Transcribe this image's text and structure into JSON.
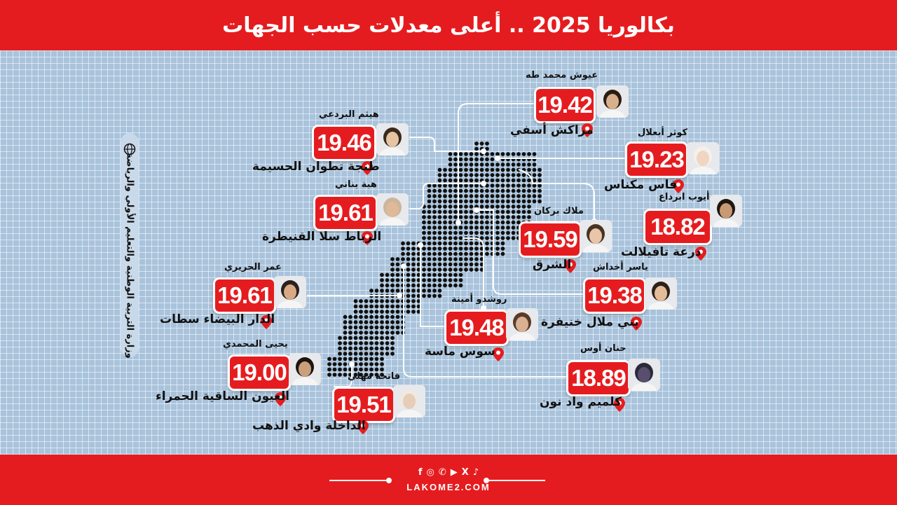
{
  "title": "بكالوريا 2025 .. أعلى معدلات حسب الجهات",
  "ministry": "وزارة التربية الوطنية والتعليم الأولي والرياضة",
  "footer": {
    "site": "LAKOME2.COM",
    "social": [
      {
        "icon": "facebook-icon",
        "glyph": "f"
      },
      {
        "icon": "instagram-icon",
        "glyph": "◎"
      },
      {
        "icon": "whatsapp-icon",
        "glyph": "✆"
      },
      {
        "icon": "youtube-icon",
        "glyph": "▶"
      },
      {
        "icon": "x-icon",
        "glyph": "X"
      },
      {
        "icon": "tiktok-icon",
        "glyph": "♪"
      }
    ]
  },
  "colors": {
    "accent": "#e51c1f",
    "background": "#a9c3dc",
    "map": "#111111"
  },
  "students": [
    {
      "name": "عيوش محمد طه",
      "score": "19.42",
      "region": "مراكش أسفي"
    },
    {
      "name": "هيثم البردعي",
      "score": "19.46",
      "region": "طنجة تطوان الحسيمة"
    },
    {
      "name": "كوثر أبعلال",
      "score": "19.23",
      "region": "فاس مكناس"
    },
    {
      "name": "هبة بناني",
      "score": "19.61",
      "region": "الرباط سلا القنيطرة"
    },
    {
      "name": "أيوب ابرداع",
      "score": "18.82",
      "region": "درعة تافيلالت"
    },
    {
      "name": "ملاك بركان",
      "score": "19.59",
      "region": "الشرق"
    },
    {
      "name": "عمر الحريري",
      "score": "19.61",
      "region": "الدار البيضاء سطات"
    },
    {
      "name": "ياسر أخداش",
      "score": "19.38",
      "region": "بني ملال خنيفرة"
    },
    {
      "name": "روشدو أمينة",
      "score": "19.48",
      "region": "سوس ماسة"
    },
    {
      "name": "يحيى المحمدي",
      "score": "19.00",
      "region": "العيون الساقية الحمراء"
    },
    {
      "name": "حنان أوس",
      "score": "18.89",
      "region": "كلميم واد نون"
    },
    {
      "name": "فاتحة مهلي",
      "score": "19.51",
      "region": "الداخلة وادي الذهب"
    }
  ]
}
